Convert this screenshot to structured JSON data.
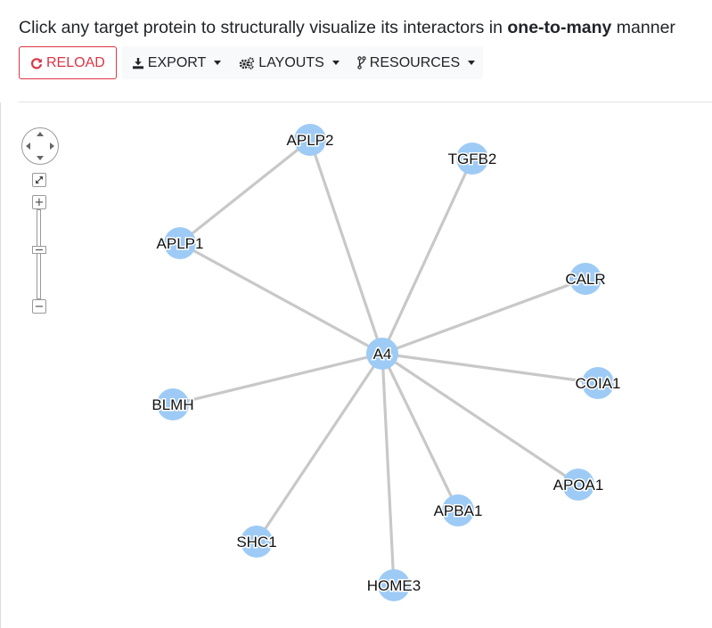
{
  "header": {
    "instruction_prefix": "Click any target protein to structurally visualize its interactors in ",
    "instruction_bold": "one-to-many",
    "instruction_suffix": " manner"
  },
  "toolbar": {
    "reload_label": "RELOAD",
    "export_label": "EXPORT",
    "layouts_label": "LAYOUTS",
    "resources_label": "RESOURCES"
  },
  "colors": {
    "reload": "#dc3545",
    "node": "#9ecbf5",
    "edge": "#c8c8c8",
    "label_halo": "#ffffff"
  },
  "icons": {
    "reload": "refresh-icon",
    "export": "download-icon",
    "layouts": "cogs-icon",
    "resources": "code-fork-icon",
    "fit": "expand-icon",
    "zoom_in": "plus-icon",
    "zoom_out": "minus-icon"
  },
  "graph": {
    "center": "A4",
    "nodes": [
      "A4",
      "APLP2",
      "TGFB2",
      "APLP1",
      "CALR",
      "COIA1",
      "BLMH",
      "APOA1",
      "APBA1",
      "SHC1",
      "HOME3"
    ],
    "edges": [
      [
        "A4",
        "APLP2"
      ],
      [
        "A4",
        "TGFB2"
      ],
      [
        "A4",
        "APLP1"
      ],
      [
        "A4",
        "CALR"
      ],
      [
        "A4",
        "COIA1"
      ],
      [
        "A4",
        "BLMH"
      ],
      [
        "A4",
        "APOA1"
      ],
      [
        "A4",
        "APBA1"
      ],
      [
        "A4",
        "SHC1"
      ],
      [
        "A4",
        "HOME3"
      ],
      [
        "APLP1",
        "APLP2"
      ]
    ]
  }
}
